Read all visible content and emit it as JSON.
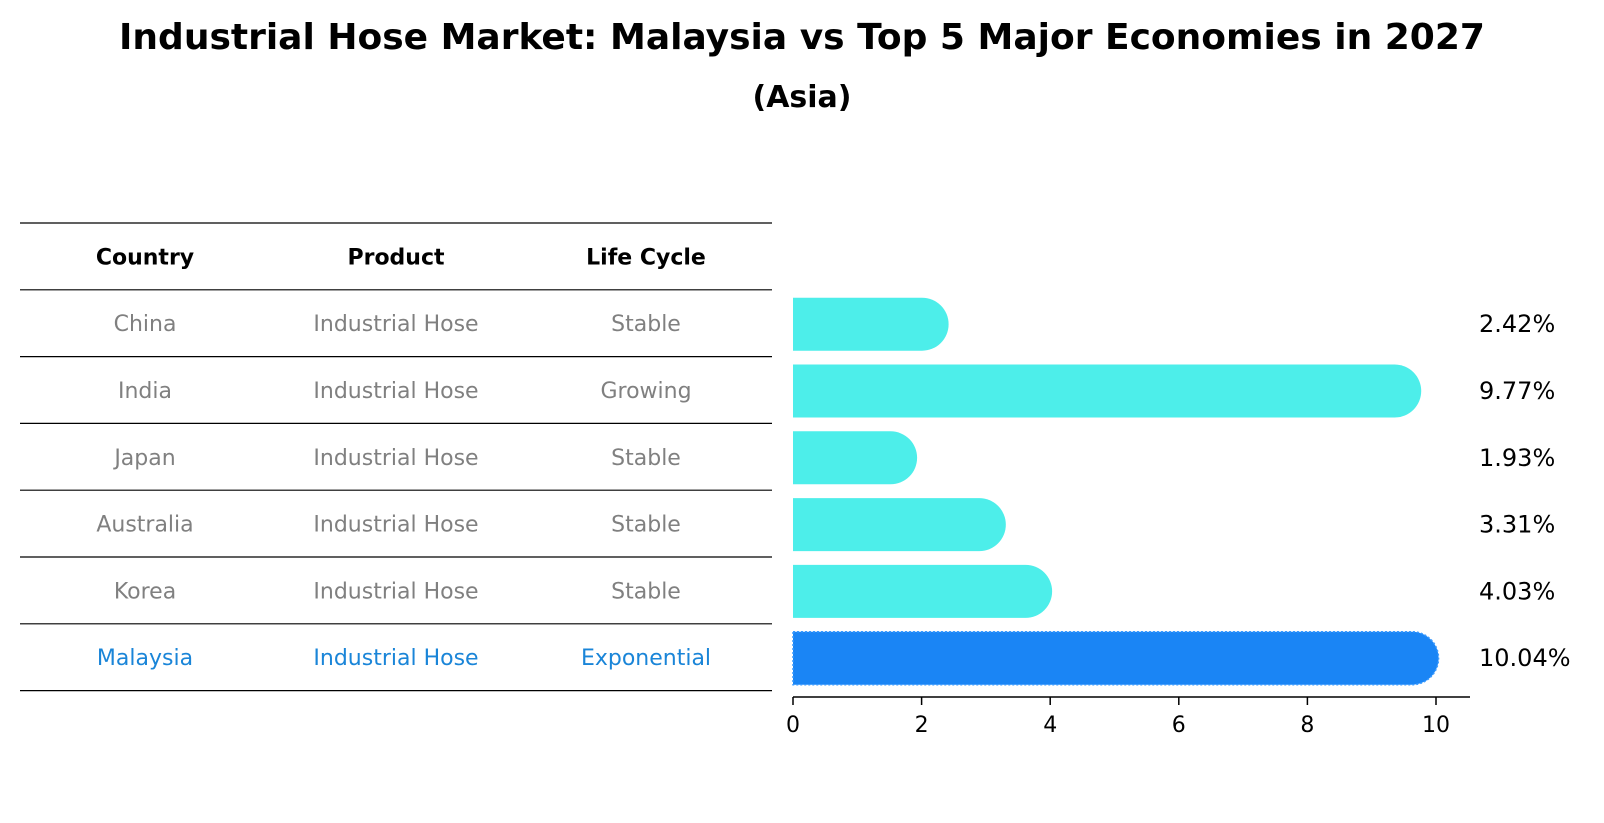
{
  "title": "Industrial Hose Market: Malaysia vs Top 5 Major Economies in 2027",
  "subtitle": "(Asia)",
  "table": {
    "headers": [
      "Country",
      "Product",
      "Life Cycle"
    ],
    "rows": [
      {
        "country": "China",
        "product": "Industrial Hose",
        "life_cycle": "Stable"
      },
      {
        "country": "India",
        "product": "Industrial Hose",
        "life_cycle": "Growing"
      },
      {
        "country": "Japan",
        "product": "Industrial Hose",
        "life_cycle": "Stable"
      },
      {
        "country": "Australia",
        "product": "Industrial Hose",
        "life_cycle": "Stable"
      },
      {
        "country": "Korea",
        "product": "Industrial Hose",
        "life_cycle": "Stable"
      },
      {
        "country": "Malaysia",
        "product": "Industrial Hose",
        "life_cycle": "Exponential"
      }
    ]
  },
  "colors": {
    "bar": "#4DEEEA",
    "highlight": "#1A85F5",
    "muted_text": "#808080",
    "highlight_text": "#1A85D8"
  },
  "chart_data": {
    "type": "bar",
    "orientation": "horizontal",
    "categories": [
      "China",
      "India",
      "Japan",
      "Australia",
      "Korea",
      "Malaysia"
    ],
    "values": [
      2.42,
      9.77,
      1.93,
      3.31,
      4.03,
      10.04
    ],
    "value_labels": [
      "2.42%",
      "9.77%",
      "1.93%",
      "3.31%",
      "4.03%",
      "10.04%"
    ],
    "highlight": "Malaysia",
    "xlim": [
      0,
      10.5
    ],
    "xticks": [
      0,
      2,
      4,
      6,
      8,
      10
    ],
    "grid": false
  }
}
